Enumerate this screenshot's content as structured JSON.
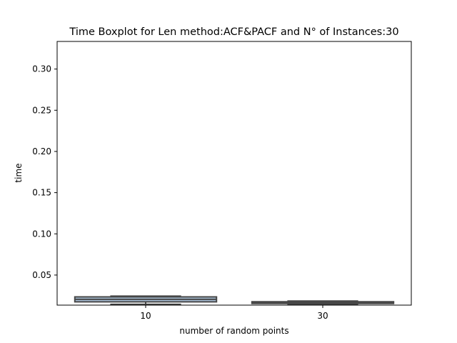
{
  "chart_data": {
    "type": "boxplot",
    "title": "Time Boxplot for Len method:ACF&PACF and N° of Instances:30",
    "xlabel": "number of random points",
    "ylabel": "time",
    "categories": [
      "10",
      "30"
    ],
    "ylim": [
      0.0135,
      0.3335
    ],
    "yticks": [
      0.05,
      0.1,
      0.15,
      0.2,
      0.25,
      0.3
    ],
    "ytick_labels": [
      "0.05",
      "0.10",
      "0.15",
      "0.20",
      "0.25",
      "0.30"
    ],
    "grid": false,
    "legend": "none",
    "boxes": [
      {
        "category": "10",
        "whisker_low": 0.0145,
        "q1": 0.0175,
        "median": 0.0205,
        "q3": 0.0235,
        "whisker_high": 0.0245,
        "color": "#a9c1d9"
      },
      {
        "category": "30",
        "whisker_low": 0.0148,
        "q1": 0.0155,
        "median": 0.0163,
        "q3": 0.0176,
        "whisker_high": 0.0185,
        "color": "#8f9fb5"
      }
    ],
    "line_color": "#474747"
  }
}
